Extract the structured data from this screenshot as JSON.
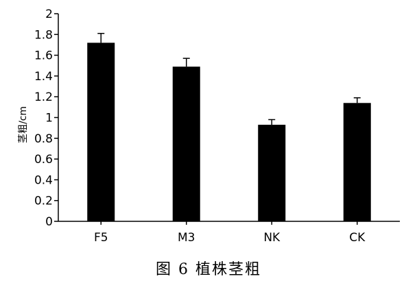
{
  "chart_data": {
    "type": "bar",
    "categories": [
      "F5",
      "M3",
      "NK",
      "CK"
    ],
    "values": [
      1.72,
      1.49,
      0.93,
      1.14
    ],
    "error": [
      0.09,
      0.08,
      0.05,
      0.05
    ],
    "ylabel": "茎粗/cm",
    "xlabel": "",
    "ylim": [
      0,
      2
    ],
    "yticks": [
      "0",
      "0.2",
      "0.4",
      "0.6",
      "0.8",
      "1",
      "1.2",
      "1.4",
      "1.6",
      "1.8",
      "2"
    ],
    "grid": false,
    "bar_color": "#000000"
  },
  "caption": "图 6  植株茎粗"
}
